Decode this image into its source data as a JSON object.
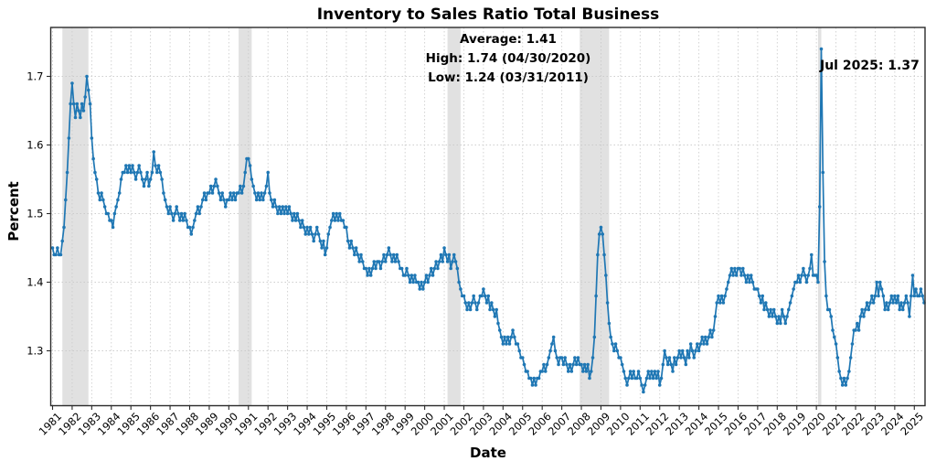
{
  "chart_data": {
    "type": "line",
    "title": "Inventory to Sales Ratio Total Business",
    "xlabel": "Date",
    "ylabel": "Percent",
    "frequency": "monthly",
    "start_date": "1981-01",
    "end_date": "2025-07",
    "ylim": [
      1.22,
      1.77
    ],
    "yticks": [
      1.3,
      1.4,
      1.5,
      1.6,
      1.7
    ],
    "xtick_years": [
      1981,
      1982,
      1983,
      1984,
      1985,
      1986,
      1987,
      1988,
      1989,
      1990,
      1991,
      1992,
      1993,
      1994,
      1995,
      1996,
      1997,
      1998,
      1999,
      2000,
      2001,
      2002,
      2003,
      2004,
      2005,
      2006,
      2007,
      2008,
      2009,
      2010,
      2011,
      2012,
      2013,
      2014,
      2015,
      2016,
      2017,
      2018,
      2019,
      2020,
      2021,
      2022,
      2023,
      2024,
      2025
    ],
    "grid": "dashed",
    "legend": "none",
    "line_color": "#1f77b4",
    "recession_color": "#c9c9c9",
    "grid_color": "#c9c9c9",
    "spine_color": "#2b2b2b",
    "recessions": [
      {
        "start": "1981-07",
        "end": "1982-11"
      },
      {
        "start": "1990-07",
        "end": "1991-03"
      },
      {
        "start": "2001-03",
        "end": "2001-11"
      },
      {
        "start": "2007-12",
        "end": "2009-06"
      },
      {
        "start": "2020-02",
        "end": "2020-04"
      }
    ],
    "annotations": {
      "average": "Average: 1.41",
      "high": "High: 1.74 (04/30/2020)",
      "low": "Low: 1.24 (03/31/2011)",
      "latest": "Jul 2025: 1.37"
    },
    "values": [
      1.45,
      1.44,
      1.44,
      1.45,
      1.44,
      1.44,
      1.46,
      1.48,
      1.52,
      1.56,
      1.61,
      1.66,
      1.69,
      1.66,
      1.64,
      1.66,
      1.65,
      1.64,
      1.66,
      1.65,
      1.67,
      1.7,
      1.68,
      1.66,
      1.61,
      1.58,
      1.56,
      1.55,
      1.53,
      1.52,
      1.53,
      1.52,
      1.51,
      1.5,
      1.5,
      1.49,
      1.49,
      1.48,
      1.5,
      1.51,
      1.52,
      1.53,
      1.55,
      1.56,
      1.56,
      1.57,
      1.56,
      1.57,
      1.56,
      1.57,
      1.56,
      1.55,
      1.56,
      1.57,
      1.56,
      1.55,
      1.54,
      1.55,
      1.56,
      1.54,
      1.55,
      1.56,
      1.59,
      1.57,
      1.56,
      1.57,
      1.56,
      1.55,
      1.53,
      1.52,
      1.51,
      1.5,
      1.51,
      1.5,
      1.49,
      1.5,
      1.51,
      1.5,
      1.49,
      1.5,
      1.49,
      1.5,
      1.49,
      1.48,
      1.48,
      1.47,
      1.48,
      1.49,
      1.5,
      1.51,
      1.5,
      1.51,
      1.52,
      1.53,
      1.52,
      1.53,
      1.53,
      1.54,
      1.53,
      1.54,
      1.55,
      1.54,
      1.53,
      1.52,
      1.53,
      1.52,
      1.51,
      1.52,
      1.52,
      1.53,
      1.52,
      1.53,
      1.52,
      1.53,
      1.53,
      1.54,
      1.53,
      1.54,
      1.56,
      1.58,
      1.58,
      1.57,
      1.55,
      1.54,
      1.53,
      1.52,
      1.53,
      1.52,
      1.53,
      1.52,
      1.53,
      1.54,
      1.56,
      1.53,
      1.52,
      1.51,
      1.52,
      1.51,
      1.5,
      1.51,
      1.5,
      1.51,
      1.5,
      1.51,
      1.5,
      1.51,
      1.5,
      1.49,
      1.5,
      1.49,
      1.5,
      1.49,
      1.48,
      1.49,
      1.48,
      1.47,
      1.48,
      1.47,
      1.48,
      1.47,
      1.46,
      1.47,
      1.48,
      1.47,
      1.46,
      1.45,
      1.46,
      1.44,
      1.45,
      1.47,
      1.48,
      1.49,
      1.5,
      1.49,
      1.5,
      1.49,
      1.5,
      1.49,
      1.49,
      1.48,
      1.48,
      1.46,
      1.45,
      1.46,
      1.45,
      1.44,
      1.45,
      1.44,
      1.43,
      1.44,
      1.43,
      1.42,
      1.42,
      1.41,
      1.42,
      1.41,
      1.42,
      1.43,
      1.42,
      1.43,
      1.43,
      1.42,
      1.43,
      1.44,
      1.43,
      1.44,
      1.45,
      1.44,
      1.43,
      1.44,
      1.43,
      1.44,
      1.43,
      1.42,
      1.42,
      1.41,
      1.41,
      1.42,
      1.41,
      1.4,
      1.41,
      1.4,
      1.41,
      1.4,
      1.4,
      1.39,
      1.4,
      1.39,
      1.4,
      1.41,
      1.4,
      1.41,
      1.42,
      1.41,
      1.42,
      1.43,
      1.42,
      1.43,
      1.44,
      1.43,
      1.45,
      1.44,
      1.43,
      1.44,
      1.42,
      1.43,
      1.44,
      1.43,
      1.42,
      1.4,
      1.39,
      1.38,
      1.38,
      1.37,
      1.36,
      1.37,
      1.36,
      1.37,
      1.38,
      1.37,
      1.36,
      1.37,
      1.38,
      1.38,
      1.39,
      1.38,
      1.37,
      1.38,
      1.36,
      1.37,
      1.36,
      1.35,
      1.36,
      1.34,
      1.33,
      1.32,
      1.31,
      1.32,
      1.31,
      1.32,
      1.31,
      1.32,
      1.33,
      1.32,
      1.31,
      1.31,
      1.3,
      1.29,
      1.29,
      1.28,
      1.27,
      1.27,
      1.26,
      1.26,
      1.25,
      1.26,
      1.25,
      1.26,
      1.26,
      1.27,
      1.27,
      1.28,
      1.27,
      1.28,
      1.29,
      1.3,
      1.31,
      1.32,
      1.3,
      1.29,
      1.28,
      1.29,
      1.29,
      1.28,
      1.29,
      1.28,
      1.27,
      1.28,
      1.27,
      1.28,
      1.29,
      1.28,
      1.29,
      1.28,
      1.28,
      1.27,
      1.28,
      1.27,
      1.28,
      1.26,
      1.27,
      1.29,
      1.32,
      1.38,
      1.44,
      1.47,
      1.48,
      1.47,
      1.44,
      1.41,
      1.37,
      1.34,
      1.32,
      1.31,
      1.3,
      1.31,
      1.3,
      1.29,
      1.29,
      1.28,
      1.27,
      1.26,
      1.25,
      1.26,
      1.27,
      1.26,
      1.27,
      1.26,
      1.26,
      1.27,
      1.26,
      1.25,
      1.24,
      1.25,
      1.26,
      1.27,
      1.26,
      1.27,
      1.26,
      1.27,
      1.26,
      1.27,
      1.25,
      1.26,
      1.28,
      1.3,
      1.29,
      1.28,
      1.29,
      1.28,
      1.27,
      1.29,
      1.28,
      1.29,
      1.3,
      1.29,
      1.3,
      1.29,
      1.28,
      1.3,
      1.29,
      1.31,
      1.3,
      1.29,
      1.3,
      1.31,
      1.3,
      1.31,
      1.32,
      1.31,
      1.32,
      1.31,
      1.32,
      1.33,
      1.32,
      1.33,
      1.35,
      1.37,
      1.38,
      1.37,
      1.38,
      1.37,
      1.38,
      1.39,
      1.4,
      1.41,
      1.42,
      1.41,
      1.42,
      1.41,
      1.42,
      1.42,
      1.41,
      1.42,
      1.41,
      1.4,
      1.41,
      1.4,
      1.41,
      1.4,
      1.39,
      1.39,
      1.39,
      1.38,
      1.37,
      1.38,
      1.36,
      1.37,
      1.36,
      1.35,
      1.36,
      1.35,
      1.36,
      1.35,
      1.34,
      1.35,
      1.34,
      1.36,
      1.35,
      1.34,
      1.35,
      1.36,
      1.37,
      1.38,
      1.39,
      1.4,
      1.4,
      1.41,
      1.4,
      1.41,
      1.42,
      1.41,
      1.4,
      1.41,
      1.42,
      1.44,
      1.41,
      1.41,
      1.41,
      1.4,
      1.51,
      1.74,
      1.56,
      1.43,
      1.38,
      1.36,
      1.36,
      1.35,
      1.33,
      1.32,
      1.31,
      1.29,
      1.27,
      1.26,
      1.25,
      1.26,
      1.25,
      1.26,
      1.27,
      1.29,
      1.31,
      1.33,
      1.33,
      1.34,
      1.33,
      1.35,
      1.36,
      1.35,
      1.36,
      1.37,
      1.36,
      1.37,
      1.38,
      1.37,
      1.38,
      1.4,
      1.38,
      1.4,
      1.39,
      1.38,
      1.36,
      1.37,
      1.36,
      1.37,
      1.38,
      1.37,
      1.38,
      1.37,
      1.38,
      1.36,
      1.37,
      1.36,
      1.37,
      1.38,
      1.37,
      1.35,
      1.38,
      1.41,
      1.38,
      1.39,
      1.38,
      1.38,
      1.39,
      1.38,
      1.37
    ]
  }
}
